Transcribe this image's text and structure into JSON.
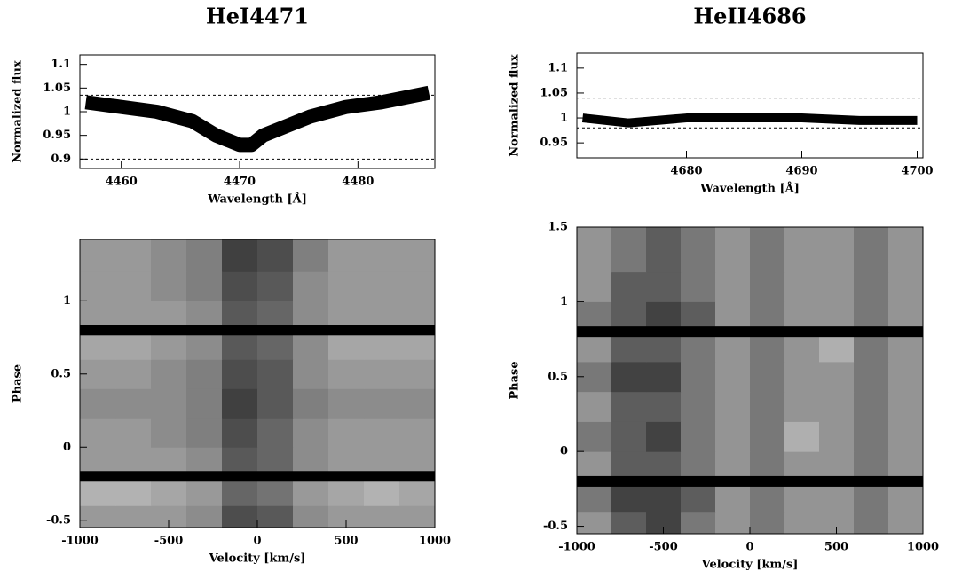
{
  "chart_data": [
    {
      "type": "line",
      "title": "HeI4471",
      "x_label": "Wavelength [Å]",
      "y_label": "Normalized flux",
      "x": [
        4457,
        4460,
        4463,
        4466,
        4468,
        4470,
        4471,
        4472,
        4474,
        4476,
        4479,
        4482,
        4486
      ],
      "series": [
        {
          "color": "#000000",
          "values": [
            1.02,
            1.01,
            1.0,
            0.98,
            0.95,
            0.93,
            0.93,
            0.95,
            0.97,
            0.99,
            1.01,
            1.02,
            1.04
          ]
        }
      ],
      "hlines": [
        1.035,
        0.9
      ],
      "xlim": [
        4456.5,
        4486.5
      ],
      "xticks": [
        4460,
        4470,
        4480
      ],
      "ylim": [
        0.88,
        1.12
      ],
      "yticks": [
        0.9,
        0.95,
        1,
        1.05,
        1.1
      ]
    },
    {
      "type": "line",
      "title": "HeII4686",
      "x_label": "Wavelength [Å]",
      "y_label": "Normalized flux",
      "x": [
        4671,
        4675,
        4680,
        4685,
        4690,
        4695,
        4700
      ],
      "series": [
        {
          "color": "#000000",
          "values": [
            1.0,
            0.99,
            1.0,
            1.0,
            1.0,
            0.995,
            0.995
          ]
        }
      ],
      "hlines": [
        1.04,
        0.98
      ],
      "xlim": [
        4670.5,
        4700.5
      ],
      "xticks": [
        4680,
        4690,
        4700
      ],
      "ylim": [
        0.92,
        1.13
      ],
      "yticks": [
        0.95,
        1,
        1.05,
        1.1
      ]
    },
    {
      "type": "heatmap",
      "x_label": "Velocity [km/s]",
      "y_label": "Phase",
      "x": [
        -900,
        -700,
        -500,
        -300,
        -100,
        100,
        300,
        500,
        700,
        900
      ],
      "y": [
        -0.45,
        -0.3,
        -0.1,
        0.1,
        0.3,
        0.5,
        0.7,
        0.9,
        1.1,
        1.3
      ],
      "z": [
        [
          0.99,
          0.99,
          0.99,
          0.98,
          0.93,
          0.94,
          0.98,
          0.99,
          0.99,
          0.99
        ],
        [
          1.01,
          1.01,
          1.0,
          0.99,
          0.95,
          0.96,
          0.99,
          1.0,
          1.01,
          1.0
        ],
        [
          0.99,
          0.99,
          0.99,
          0.98,
          0.94,
          0.95,
          0.98,
          0.99,
          0.99,
          0.99
        ],
        [
          0.99,
          0.99,
          0.98,
          0.97,
          0.93,
          0.95,
          0.98,
          0.99,
          0.99,
          0.99
        ],
        [
          0.98,
          0.98,
          0.98,
          0.97,
          0.92,
          0.94,
          0.97,
          0.98,
          0.98,
          0.98
        ],
        [
          0.99,
          0.99,
          0.98,
          0.97,
          0.93,
          0.94,
          0.98,
          0.99,
          0.99,
          0.99
        ],
        [
          1.0,
          1.0,
          0.99,
          0.98,
          0.94,
          0.95,
          0.98,
          1.0,
          1.0,
          1.0
        ],
        [
          0.99,
          0.99,
          0.99,
          0.98,
          0.94,
          0.95,
          0.98,
          0.99,
          0.99,
          0.99
        ],
        [
          0.99,
          0.99,
          0.98,
          0.97,
          0.93,
          0.94,
          0.98,
          0.99,
          0.99,
          0.99
        ],
        [
          0.99,
          0.99,
          0.98,
          0.97,
          0.92,
          0.93,
          0.97,
          0.99,
          0.99,
          0.99
        ]
      ],
      "zlim": [
        0.9,
        1.05
      ],
      "gaps": [
        -0.2,
        0.8
      ],
      "xlim": [
        -1000,
        1000
      ],
      "xticks": [
        -1000,
        -500,
        0,
        500,
        1000
      ],
      "ylim": [
        -0.55,
        1.42
      ],
      "yticks": [
        -0.5,
        0,
        0.5,
        1
      ]
    },
    {
      "type": "heatmap",
      "x_label": "Velocity [km/s]",
      "y_label": "Phase",
      "x": [
        -900,
        -700,
        -500,
        -300,
        -100,
        100,
        300,
        500,
        700,
        900
      ],
      "y": [
        -0.45,
        -0.3,
        -0.1,
        0.1,
        0.3,
        0.5,
        0.7,
        0.9,
        1.1,
        1.3
      ],
      "z": [
        [
          0.99,
          0.97,
          0.96,
          0.98,
          0.99,
          0.98,
          0.99,
          0.99,
          0.98,
          0.99
        ],
        [
          0.98,
          0.96,
          0.96,
          0.97,
          0.99,
          0.98,
          0.99,
          0.99,
          0.98,
          0.99
        ],
        [
          0.99,
          0.97,
          0.97,
          0.98,
          0.99,
          0.98,
          0.99,
          0.99,
          0.98,
          0.99
        ],
        [
          0.98,
          0.97,
          0.96,
          0.98,
          0.99,
          0.98,
          1.0,
          0.99,
          0.98,
          0.99
        ],
        [
          0.99,
          0.97,
          0.97,
          0.98,
          0.99,
          0.98,
          0.99,
          0.99,
          0.98,
          0.99
        ],
        [
          0.98,
          0.96,
          0.96,
          0.98,
          0.99,
          0.98,
          0.99,
          0.99,
          0.98,
          0.99
        ],
        [
          0.99,
          0.97,
          0.97,
          0.98,
          0.99,
          0.98,
          0.99,
          1.0,
          0.98,
          0.99
        ],
        [
          0.98,
          0.97,
          0.96,
          0.97,
          0.99,
          0.98,
          0.99,
          0.99,
          0.98,
          0.99
        ],
        [
          0.99,
          0.97,
          0.97,
          0.98,
          0.99,
          0.98,
          0.99,
          0.99,
          0.98,
          0.99
        ],
        [
          0.99,
          0.98,
          0.97,
          0.98,
          0.99,
          0.98,
          0.99,
          0.99,
          0.98,
          0.99
        ]
      ],
      "zlim": [
        0.95,
        1.02
      ],
      "gaps": [
        -0.2,
        0.8
      ],
      "xlim": [
        -1000,
        1000
      ],
      "xticks": [
        -1000,
        -500,
        0,
        500,
        1000
      ],
      "ylim": [
        -0.55,
        1.5
      ],
      "yticks": [
        -0.5,
        0,
        0.5,
        1,
        1.5
      ]
    }
  ]
}
